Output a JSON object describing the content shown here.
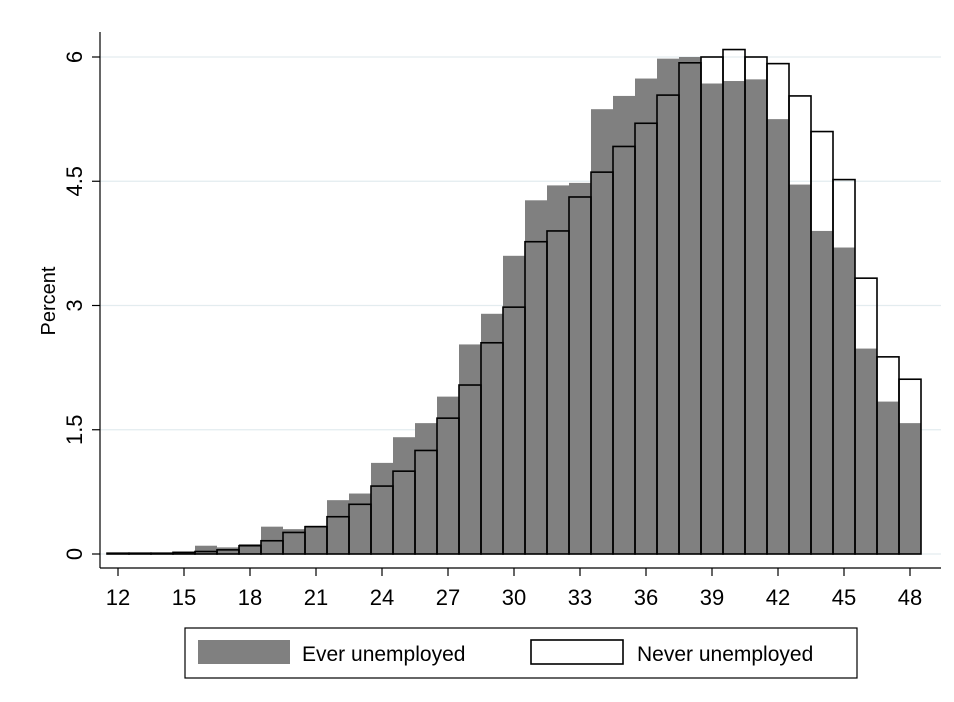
{
  "chart_data": {
    "type": "bar",
    "title": "",
    "xlabel": "",
    "ylabel": "Percent",
    "xlim": [
      12,
      48
    ],
    "ylim": [
      0,
      6
    ],
    "xticks": [
      "12",
      "15",
      "18",
      "21",
      "24",
      "27",
      "30",
      "33",
      "36",
      "39",
      "42",
      "45",
      "48"
    ],
    "yticks": [
      "0",
      "1.5",
      "3",
      "4.5",
      "6"
    ],
    "grid": true,
    "legend_position": "bottom",
    "series": [
      {
        "name": "Ever unemployed",
        "style": "filled",
        "color": "#808080",
        "x": [
          12,
          13,
          14,
          15,
          16,
          17,
          18,
          19,
          20,
          21,
          22,
          23,
          24,
          25,
          26,
          27,
          28,
          29,
          30,
          31,
          32,
          33,
          34,
          35,
          36,
          37,
          38,
          39,
          40,
          41,
          42,
          43,
          44,
          45,
          46,
          47,
          48
        ],
        "values": [
          0.01,
          0.01,
          0.01,
          0.02,
          0.1,
          0.08,
          0.12,
          0.33,
          0.3,
          0.34,
          0.65,
          0.73,
          1.1,
          1.41,
          1.58,
          1.9,
          2.53,
          2.9,
          3.6,
          4.27,
          4.45,
          4.48,
          5.37,
          5.53,
          5.74,
          5.98,
          6.0,
          5.68,
          5.71,
          5.73,
          5.25,
          4.46,
          3.9,
          3.7,
          2.48,
          1.84,
          1.58
        ]
      },
      {
        "name": "Never unemployed",
        "style": "outline",
        "color": "#000000",
        "x": [
          12,
          13,
          14,
          15,
          16,
          17,
          18,
          19,
          20,
          21,
          22,
          23,
          24,
          25,
          26,
          27,
          28,
          29,
          30,
          31,
          32,
          33,
          34,
          35,
          36,
          37,
          38,
          39,
          40,
          41,
          42,
          43,
          44,
          45,
          46,
          47,
          48
        ],
        "values": [
          0.01,
          0.01,
          0.01,
          0.02,
          0.03,
          0.05,
          0.1,
          0.16,
          0.26,
          0.33,
          0.45,
          0.6,
          0.82,
          1.0,
          1.25,
          1.64,
          2.04,
          2.55,
          2.98,
          3.77,
          3.9,
          4.31,
          4.61,
          4.92,
          5.2,
          5.54,
          5.93,
          6.0,
          6.09,
          6.0,
          5.92,
          5.53,
          5.1,
          4.52,
          3.33,
          2.38,
          2.11
        ]
      }
    ]
  }
}
